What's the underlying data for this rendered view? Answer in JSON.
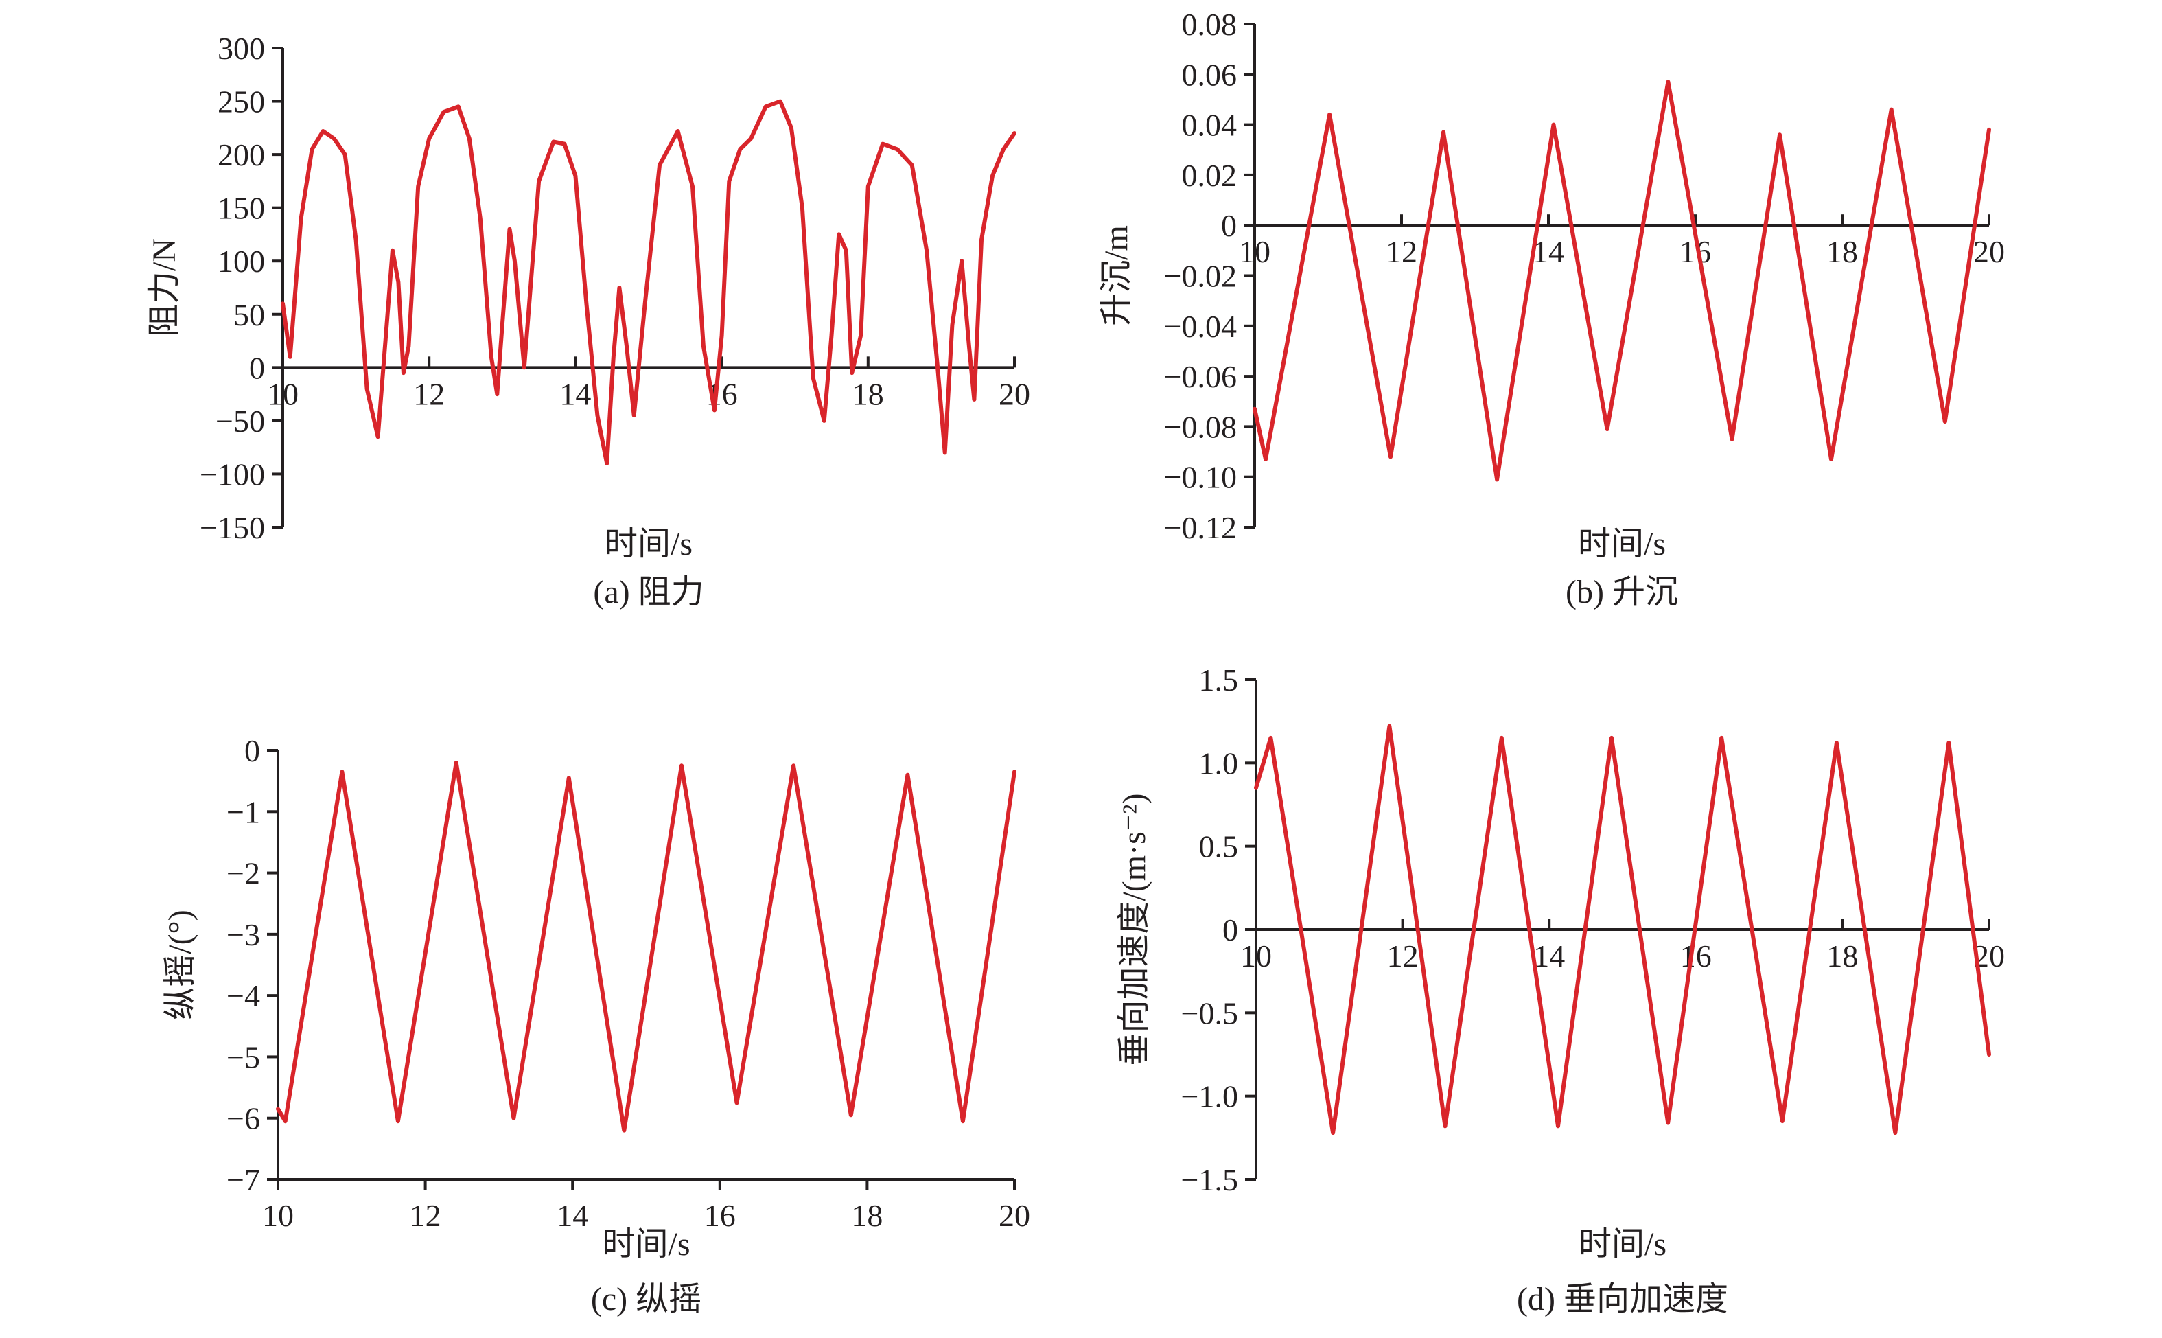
{
  "chart_data": [
    {
      "type": "line",
      "caption": "(a) 阻力",
      "xlabel": "时间/s",
      "ylabel": "阻力/N",
      "xlim": [
        10,
        20
      ],
      "ylim": [
        -150,
        300
      ],
      "xticks": [
        "10",
        "12",
        "14",
        "16",
        "18",
        "20"
      ],
      "yticks": [
        "300",
        "250",
        "200",
        "150",
        "100",
        "50",
        "0",
        "−50",
        "−100",
        "−150"
      ],
      "x_axis_at_zero": true,
      "series": [
        {
          "color": "#d9252b",
          "x": [
            10.0,
            10.1,
            10.25,
            10.4,
            10.55,
            10.7,
            10.85,
            11.0,
            11.15,
            11.3,
            11.42,
            11.5,
            11.58,
            11.65,
            11.72,
            11.85,
            12.0,
            12.2,
            12.4,
            12.55,
            12.7,
            12.85,
            12.93,
            13.0,
            13.1,
            13.17,
            13.3,
            13.5,
            13.7,
            13.85,
            14.0,
            14.15,
            14.3,
            14.43,
            14.52,
            14.6,
            14.7,
            14.8,
            14.95,
            15.15,
            15.4,
            15.6,
            15.75,
            15.9,
            16.0,
            16.1,
            16.25,
            16.4,
            16.6,
            16.8,
            16.95,
            17.1,
            17.25,
            17.4,
            17.5,
            17.6,
            17.7,
            17.78,
            17.9,
            18.0,
            18.2,
            18.4,
            18.6,
            18.8,
            18.95,
            19.05,
            19.15,
            19.28,
            19.38,
            19.45,
            19.55,
            19.7,
            19.85,
            20.0
          ],
          "values": [
            60,
            10,
            140,
            205,
            222,
            215,
            200,
            120,
            -20,
            -65,
            40,
            110,
            80,
            -5,
            20,
            170,
            215,
            240,
            245,
            215,
            140,
            10,
            -25,
            40,
            130,
            100,
            0,
            175,
            212,
            210,
            180,
            60,
            -45,
            -90,
            10,
            75,
            20,
            -45,
            60,
            190,
            222,
            170,
            20,
            -40,
            30,
            175,
            205,
            215,
            245,
            250,
            225,
            150,
            -10,
            -50,
            30,
            125,
            110,
            -5,
            30,
            170,
            210,
            205,
            190,
            110,
            0,
            -80,
            40,
            100,
            20,
            -30,
            120,
            180,
            205,
            220
          ]
        }
      ]
    },
    {
      "type": "line",
      "caption": "(b) 升沉",
      "xlabel": "时间/s",
      "ylabel": "升沉/m",
      "xlim": [
        10,
        20
      ],
      "ylim": [
        -0.12,
        0.08
      ],
      "xticks": [
        "10",
        "12",
        "14",
        "16",
        "18",
        "20"
      ],
      "yticks": [
        "0.08",
        "0.06",
        "0.04",
        "0.02",
        "0",
        "−0.02",
        "−0.04",
        "−0.06",
        "−0.08",
        "−0.10",
        "−0.12"
      ],
      "x_axis_at_zero": true,
      "series": [
        {
          "color": "#d9252b",
          "x": [
            10.0,
            10.15,
            11.02,
            11.85,
            12.57,
            13.3,
            14.07,
            14.8,
            15.63,
            16.5,
            17.15,
            17.85,
            18.67,
            19.4,
            20.0
          ],
          "values": [
            -0.073,
            -0.093,
            0.044,
            -0.092,
            0.037,
            -0.101,
            0.04,
            -0.081,
            0.057,
            -0.085,
            0.036,
            -0.093,
            0.046,
            -0.078,
            0.038
          ]
        }
      ]
    },
    {
      "type": "line",
      "caption": "(c) 纵摇",
      "xlabel": "时间/s",
      "ylabel": "纵摇/(°)",
      "xlim": [
        10,
        20
      ],
      "ylim": [
        -7,
        0
      ],
      "xticks": [
        "10",
        "12",
        "14",
        "16",
        "18",
        "20"
      ],
      "yticks": [
        "0",
        "−1",
        "−2",
        "−3",
        "−4",
        "−5",
        "−6",
        "−7"
      ],
      "x_axis_at_zero": false,
      "series": [
        {
          "color": "#d9252b",
          "x": [
            10.0,
            10.1,
            10.87,
            11.63,
            12.42,
            13.2,
            13.95,
            14.7,
            15.48,
            16.23,
            17.0,
            17.78,
            18.55,
            19.3,
            20.0
          ],
          "values": [
            -5.85,
            -6.05,
            -0.35,
            -6.05,
            -0.2,
            -6.0,
            -0.45,
            -6.2,
            -0.25,
            -5.75,
            -0.25,
            -5.95,
            -0.4,
            -6.05,
            -0.35
          ]
        }
      ]
    },
    {
      "type": "line",
      "caption": "(d) 垂向加速度",
      "xlabel": "时间/s",
      "ylabel": "垂向加速度/(m·s⁻²)",
      "xlim": [
        10,
        20
      ],
      "ylim": [
        -1.5,
        1.5
      ],
      "xticks": [
        "10",
        "12",
        "14",
        "16",
        "18",
        "20"
      ],
      "yticks": [
        "1.5",
        "1.0",
        "0.5",
        "0",
        "−0.5",
        "−1.0",
        "−1.5"
      ],
      "x_axis_at_zero": true,
      "series": [
        {
          "color": "#d9252b",
          "x": [
            10.0,
            10.2,
            11.05,
            11.82,
            12.58,
            13.35,
            14.12,
            14.85,
            15.62,
            16.35,
            17.18,
            17.92,
            18.72,
            19.45,
            20.0
          ],
          "values": [
            0.85,
            1.15,
            -1.22,
            1.22,
            -1.18,
            1.15,
            -1.18,
            1.15,
            -1.16,
            1.15,
            -1.15,
            1.12,
            -1.22,
            1.12,
            -0.75
          ]
        }
      ]
    }
  ]
}
